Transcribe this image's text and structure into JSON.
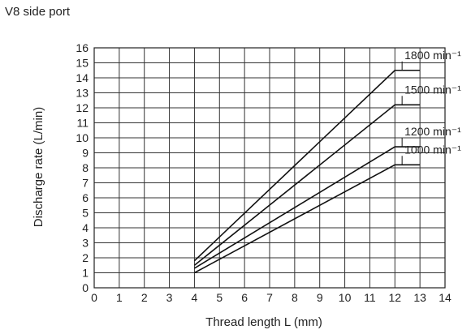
{
  "chart_data": {
    "type": "line",
    "title": "V8 side port",
    "xlabel": "Thread length L (mm)",
    "ylabel": "Discharge rate (L/min)",
    "xlim": [
      0,
      14
    ],
    "ylim": [
      0,
      16
    ],
    "xticks": [
      "0",
      "1",
      "2",
      "3",
      "4",
      "5",
      "6",
      "7",
      "8",
      "9",
      "10",
      "11",
      "12",
      "13",
      "14"
    ],
    "yticks": [
      "0",
      "1",
      "2",
      "3",
      "4",
      "5",
      "6",
      "7",
      "8",
      "9",
      "10",
      "11",
      "12",
      "13",
      "14",
      "15",
      "16"
    ],
    "grid": true,
    "series": [
      {
        "name": "1800 min⁻¹",
        "x": [
          4,
          12,
          13
        ],
        "y": [
          1.8,
          14.5,
          14.5
        ]
      },
      {
        "name": "1500 min⁻¹",
        "x": [
          4,
          12,
          13
        ],
        "y": [
          1.5,
          12.2,
          12.2
        ]
      },
      {
        "name": "1200 min⁻¹",
        "x": [
          4,
          12,
          13
        ],
        "y": [
          1.3,
          9.4,
          9.4
        ]
      },
      {
        "name": "1000 min⁻¹",
        "x": [
          4,
          12,
          13
        ],
        "y": [
          1.0,
          8.2,
          8.2
        ]
      }
    ]
  }
}
